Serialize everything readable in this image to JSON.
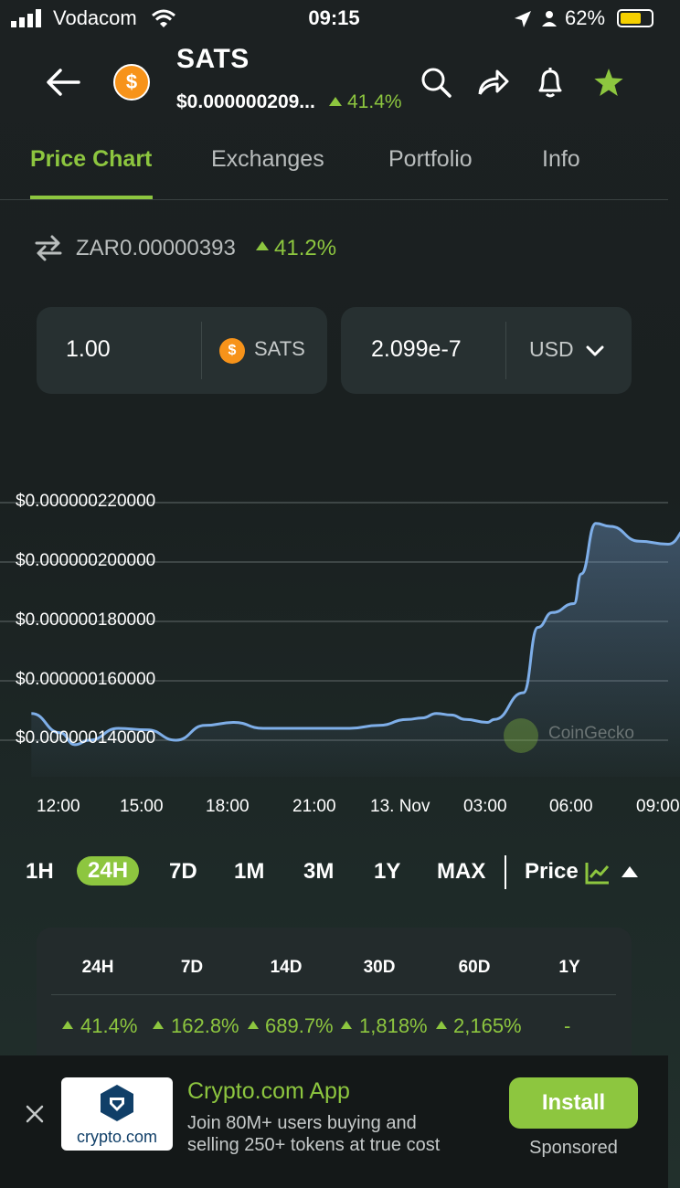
{
  "status_bar": {
    "carrier": "Vodacom",
    "time": "09:15",
    "battery": "62%"
  },
  "header": {
    "symbol": "SATS",
    "coin_glyph": "$",
    "price": "$0.000000209...",
    "change": "41.4%"
  },
  "tabs": [
    "Price Chart",
    "Exchanges",
    "Portfolio",
    "Info"
  ],
  "fiat": {
    "value": "ZAR0.00000393",
    "change": "41.2%"
  },
  "converter": {
    "amount": "1.00",
    "coin": "SATS",
    "result": "2.099e-7",
    "currency": "USD"
  },
  "chart_data": {
    "type": "line",
    "x": [
      "11:00",
      "12:00",
      "12:30",
      "13:00",
      "14:00",
      "15:00",
      "16:00",
      "17:00",
      "18:00",
      "19:00",
      "20:00",
      "21:00",
      "22:00",
      "23:00",
      "00:00",
      "00:30",
      "01:00",
      "01:30",
      "02:00",
      "02:45",
      "03:00",
      "04:00",
      "04:30",
      "05:00",
      "05:45",
      "06:00",
      "06:30",
      "07:00",
      "08:00",
      "09:00",
      "09:45"
    ],
    "values": [
      1.49e-07,
      1.425e-07,
      1.385e-07,
      1.4e-07,
      1.44e-07,
      1.435e-07,
      1.4e-07,
      1.45e-07,
      1.46e-07,
      1.44e-07,
      1.44e-07,
      1.44e-07,
      1.44e-07,
      1.45e-07,
      1.47e-07,
      1.475e-07,
      1.49e-07,
      1.485e-07,
      1.47e-07,
      1.46e-07,
      1.47e-07,
      1.56e-07,
      1.78e-07,
      1.83e-07,
      1.86e-07,
      1.96e-07,
      2.13e-07,
      2.12e-07,
      2.07e-07,
      2.06e-07,
      2.12e-07
    ],
    "ylim": [
      1.3e-07,
      2.25e-07
    ],
    "yticks": [
      "$0.000000220000",
      "$0.000000200000",
      "$0.000000180000",
      "$0.000000160000",
      "$0.000000140000"
    ],
    "xticks": [
      "12:00",
      "15:00",
      "18:00",
      "21:00",
      "13. Nov",
      "03:00",
      "06:00",
      "09:00"
    ],
    "watermark": "CoinGecko",
    "line_color": "#7eaee8"
  },
  "timeframes": [
    "1H",
    "24H",
    "7D",
    "1M",
    "3M",
    "1Y",
    "MAX"
  ],
  "chart_mode": "Price",
  "stats": {
    "headers": [
      "24H",
      "7D",
      "14D",
      "30D",
      "60D",
      "1Y"
    ],
    "values": [
      "41.4%",
      "162.8%",
      "689.7%",
      "1,818%",
      "2,165%",
      "-"
    ]
  },
  "ad": {
    "logo_text": "crypto.com",
    "title": "Crypto.com App",
    "line1": "Join 80M+ users buying and",
    "line2": "selling 250+ tokens at true cost",
    "button": "Install",
    "sponsored": "Sponsored"
  },
  "colors": {
    "accent": "#8dc63f",
    "bg": "#1c2122",
    "card": "#273031"
  }
}
